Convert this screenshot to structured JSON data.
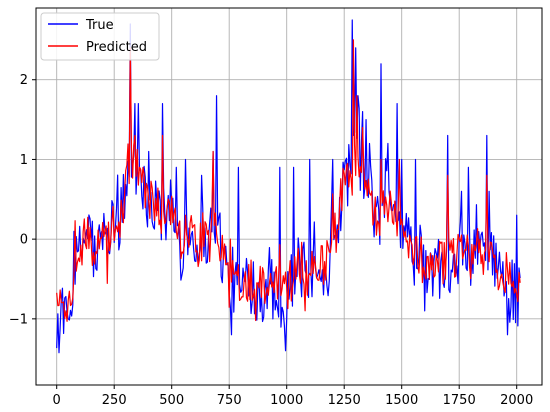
{
  "chart_data": {
    "type": "line",
    "title": "",
    "xlabel": "",
    "ylabel": "",
    "xlim": [
      -90,
      2110
    ],
    "ylim": [
      -1.83,
      2.9
    ],
    "grid": true,
    "legend_position": "top-left",
    "x_ticks": [
      0,
      250,
      500,
      750,
      1000,
      1250,
      1500,
      1750,
      2000
    ],
    "y_ticks": [
      -1,
      0,
      1,
      2
    ],
    "x_tick_labels": [
      "0",
      "250",
      "500",
      "750",
      "1000",
      "1250",
      "1500",
      "1750",
      "2000"
    ],
    "y_tick_labels": [
      "−1",
      "0",
      "1",
      "2"
    ],
    "x_step": 5,
    "n_points": 404,
    "series": [
      {
        "name": "True",
        "color": "#0000ff",
        "anchors": [
          [
            0,
            -1.0
          ],
          [
            20,
            -1.2
          ],
          [
            40,
            -1.1
          ],
          [
            60,
            -0.9
          ],
          [
            80,
            -0.4
          ],
          [
            100,
            -0.2
          ],
          [
            130,
            0.1
          ],
          [
            150,
            0.1
          ],
          [
            170,
            -0.4
          ],
          [
            190,
            0.0
          ],
          [
            220,
            -0.1
          ],
          [
            250,
            0.2
          ],
          [
            280,
            0.3
          ],
          [
            300,
            0.6
          ],
          [
            320,
            0.9
          ],
          [
            340,
            0.9
          ],
          [
            360,
            0.8
          ],
          [
            380,
            0.6
          ],
          [
            400,
            0.4
          ],
          [
            430,
            0.5
          ],
          [
            460,
            0.3
          ],
          [
            480,
            0.2
          ],
          [
            500,
            0.4
          ],
          [
            520,
            0.1
          ],
          [
            540,
            -0.1
          ],
          [
            570,
            0.1
          ],
          [
            600,
            0.0
          ],
          [
            630,
            0.1
          ],
          [
            660,
            0.0
          ],
          [
            680,
            0.2
          ],
          [
            700,
            0.2
          ],
          [
            720,
            -0.2
          ],
          [
            740,
            -0.4
          ],
          [
            760,
            -0.5
          ],
          [
            790,
            -0.6
          ],
          [
            820,
            -0.6
          ],
          [
            850,
            -0.5
          ],
          [
            880,
            -0.7
          ],
          [
            900,
            -0.6
          ],
          [
            930,
            -0.5
          ],
          [
            960,
            -0.7
          ],
          [
            990,
            -0.7
          ],
          [
            1000,
            -0.6
          ],
          [
            1030,
            -0.5
          ],
          [
            1060,
            -0.3
          ],
          [
            1090,
            -0.6
          ],
          [
            1120,
            -0.2
          ],
          [
            1150,
            -0.3
          ],
          [
            1180,
            -0.4
          ],
          [
            1200,
            0.2
          ],
          [
            1220,
            0.2
          ],
          [
            1240,
            0.6
          ],
          [
            1260,
            0.8
          ],
          [
            1280,
            0.9
          ],
          [
            1300,
            1.1
          ],
          [
            1330,
            0.8
          ],
          [
            1360,
            0.6
          ],
          [
            1380,
            0.3
          ],
          [
            1400,
            0.2
          ],
          [
            1430,
            0.5
          ],
          [
            1460,
            0.4
          ],
          [
            1480,
            0.2
          ],
          [
            1500,
            0.2
          ],
          [
            1530,
            0.1
          ],
          [
            1560,
            -0.3
          ],
          [
            1590,
            -0.2
          ],
          [
            1620,
            -0.5
          ],
          [
            1650,
            -0.3
          ],
          [
            1680,
            -0.4
          ],
          [
            1700,
            -0.2
          ],
          [
            1720,
            -0.3
          ],
          [
            1750,
            -0.1
          ],
          [
            1780,
            -0.2
          ],
          [
            1800,
            -0.4
          ],
          [
            1830,
            0.1
          ],
          [
            1860,
            -0.4
          ],
          [
            1890,
            -0.3
          ],
          [
            1920,
            -0.5
          ],
          [
            1950,
            -0.5
          ],
          [
            1980,
            -0.6
          ],
          [
            2010,
            -0.7
          ]
        ],
        "noise_amplitude": 0.42,
        "spikes": [
          [
            320,
            2.7
          ],
          [
            340,
            1.7
          ],
          [
            355,
            1.7
          ],
          [
            400,
            1.1
          ],
          [
            460,
            1.7
          ],
          [
            520,
            0.9
          ],
          [
            560,
            1.0
          ],
          [
            630,
            0.8
          ],
          [
            680,
            1.1
          ],
          [
            695,
            1.8
          ],
          [
            760,
            -1.2
          ],
          [
            790,
            0.9
          ],
          [
            940,
            -1.0
          ],
          [
            970,
            0.9
          ],
          [
            995,
            -1.4
          ],
          [
            1030,
            0.9
          ],
          [
            1100,
            1.0
          ],
          [
            1200,
            1.0
          ],
          [
            1285,
            2.75
          ],
          [
            1300,
            2.4
          ],
          [
            1310,
            1.8
          ],
          [
            1330,
            1.6
          ],
          [
            1345,
            1.5
          ],
          [
            1360,
            1.2
          ],
          [
            1410,
            2.2
          ],
          [
            1440,
            1.2
          ],
          [
            1480,
            1.7
          ],
          [
            1500,
            1.0
          ],
          [
            1560,
            1.0
          ],
          [
            1600,
            -0.9
          ],
          [
            1700,
            1.3
          ],
          [
            1760,
            0.6
          ],
          [
            1790,
            0.9
          ],
          [
            1870,
            1.3
          ],
          [
            1880,
            0.6
          ],
          [
            1960,
            -1.2
          ],
          [
            2000,
            0.3
          ]
        ]
      },
      {
        "name": "Predicted",
        "color": "#ff0000",
        "anchors": [
          [
            0,
            -0.7
          ],
          [
            20,
            -0.9
          ],
          [
            40,
            -0.9
          ],
          [
            60,
            -0.7
          ],
          [
            80,
            -0.3
          ],
          [
            100,
            -0.2
          ],
          [
            130,
            0.1
          ],
          [
            150,
            0.0
          ],
          [
            170,
            -0.3
          ],
          [
            190,
            0.0
          ],
          [
            220,
            -0.1
          ],
          [
            250,
            0.2
          ],
          [
            280,
            0.3
          ],
          [
            300,
            0.6
          ],
          [
            320,
            0.9
          ],
          [
            340,
            0.9
          ],
          [
            360,
            0.8
          ],
          [
            380,
            0.6
          ],
          [
            400,
            0.4
          ],
          [
            430,
            0.5
          ],
          [
            460,
            0.3
          ],
          [
            480,
            0.2
          ],
          [
            500,
            0.4
          ],
          [
            520,
            0.1
          ],
          [
            540,
            -0.1
          ],
          [
            570,
            0.1
          ],
          [
            600,
            0.0
          ],
          [
            630,
            0.1
          ],
          [
            660,
            0.0
          ],
          [
            680,
            0.2
          ],
          [
            700,
            0.2
          ],
          [
            720,
            -0.2
          ],
          [
            740,
            -0.4
          ],
          [
            760,
            -0.5
          ],
          [
            790,
            -0.5
          ],
          [
            820,
            -0.5
          ],
          [
            850,
            -0.5
          ],
          [
            880,
            -0.6
          ],
          [
            900,
            -0.6
          ],
          [
            930,
            -0.5
          ],
          [
            960,
            -0.6
          ],
          [
            990,
            -0.6
          ],
          [
            1000,
            -0.6
          ],
          [
            1030,
            -0.5
          ],
          [
            1060,
            -0.3
          ],
          [
            1090,
            -0.5
          ],
          [
            1120,
            -0.2
          ],
          [
            1150,
            -0.3
          ],
          [
            1180,
            -0.3
          ],
          [
            1200,
            0.2
          ],
          [
            1220,
            0.2
          ],
          [
            1240,
            0.6
          ],
          [
            1260,
            0.8
          ],
          [
            1280,
            0.9
          ],
          [
            1300,
            1.0
          ],
          [
            1330,
            0.8
          ],
          [
            1360,
            0.6
          ],
          [
            1380,
            0.3
          ],
          [
            1400,
            0.2
          ],
          [
            1430,
            0.4
          ],
          [
            1460,
            0.3
          ],
          [
            1480,
            0.2
          ],
          [
            1500,
            0.2
          ],
          [
            1530,
            0.1
          ],
          [
            1560,
            -0.2
          ],
          [
            1590,
            -0.2
          ],
          [
            1620,
            -0.4
          ],
          [
            1650,
            -0.3
          ],
          [
            1680,
            -0.3
          ],
          [
            1700,
            -0.2
          ],
          [
            1720,
            -0.3
          ],
          [
            1750,
            -0.1
          ],
          [
            1780,
            -0.2
          ],
          [
            1800,
            -0.3
          ],
          [
            1830,
            0.0
          ],
          [
            1860,
            -0.3
          ],
          [
            1890,
            -0.3
          ],
          [
            1920,
            -0.4
          ],
          [
            1950,
            -0.4
          ],
          [
            1980,
            -0.5
          ],
          [
            2010,
            -0.6
          ]
        ],
        "noise_amplitude": 0.28,
        "spikes": [
          [
            320,
            2.4
          ],
          [
            340,
            1.3
          ],
          [
            460,
            1.3
          ],
          [
            680,
            1.1
          ],
          [
            1290,
            2.5
          ],
          [
            1305,
            1.8
          ],
          [
            1330,
            1.4
          ],
          [
            1410,
            1.0
          ],
          [
            1490,
            1.0
          ],
          [
            1700,
            0.8
          ],
          [
            1870,
            0.8
          ]
        ]
      }
    ]
  }
}
